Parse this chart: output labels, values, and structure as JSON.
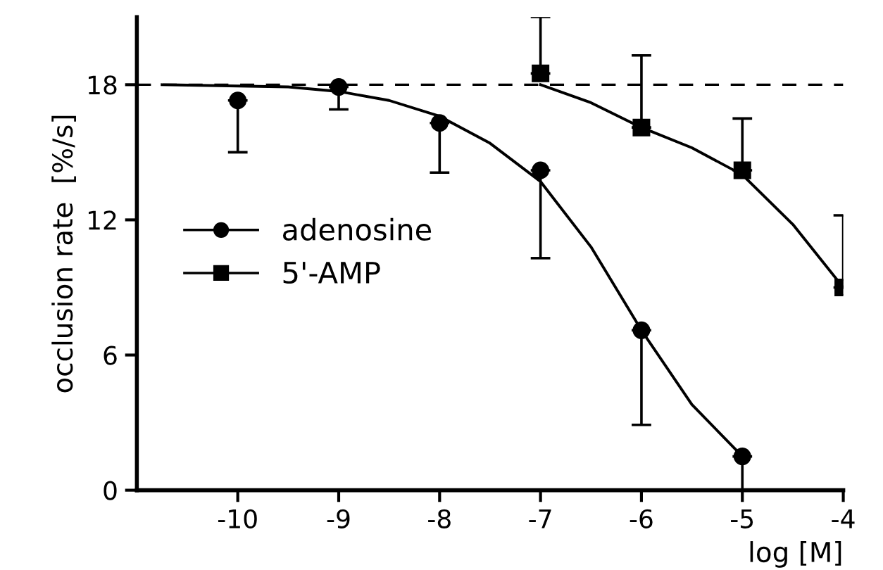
{
  "chart_data": {
    "type": "scatter",
    "xlabel": "log [M]",
    "ylabel": "occlusion rate  [%/s]",
    "xlim": [
      -11,
      -4
    ],
    "xticks": [
      -10,
      -9,
      -8,
      -7,
      -6,
      -5,
      -4
    ],
    "ylim": [
      0,
      21
    ],
    "yticks": [
      0,
      6,
      12,
      18
    ],
    "grid": false,
    "legend": "center left",
    "ref_lines": [
      {
        "axis": "y",
        "value": 18,
        "line_style": "dashed",
        "color": "#000000"
      }
    ],
    "series": [
      {
        "name": "adenosine",
        "marker": "circle",
        "color": "#000000",
        "x": [
          -10,
          -9,
          -8,
          -7,
          -6,
          -5
        ],
        "values": [
          17.3,
          17.9,
          16.3,
          14.2,
          7.1,
          1.5
        ],
        "errors": [
          [
            15.0,
            17.3
          ],
          [
            16.9,
            17.9
          ],
          [
            14.1,
            16.3
          ],
          [
            10.3,
            14.2
          ],
          [
            2.9,
            7.1
          ],
          [
            0,
            1.5
          ]
        ]
      },
      {
        "name": "5'-AMP",
        "marker": "square",
        "color": "#000000",
        "x": [
          -7,
          -6,
          -5,
          -4
        ],
        "values": [
          18.5,
          16.1,
          14.2,
          9.0
        ],
        "errors": [
          [
            18.5,
            21.0
          ],
          [
            16.1,
            19.3
          ],
          [
            14.2,
            16.5
          ],
          [
            9.0,
            12.2
          ]
        ]
      },
      {
        "type": "line",
        "color": "#000000",
        "line_style": "solid",
        "x": [
          -10.75,
          -9.5,
          -9,
          -8.5,
          -8,
          -7.5,
          -7,
          -6.5,
          -6,
          -5.5,
          -5
        ],
        "values": [
          18.0,
          17.9,
          17.7,
          17.3,
          16.6,
          15.4,
          13.7,
          10.8,
          7.1,
          3.8,
          1.5
        ]
      },
      {
        "type": "line",
        "color": "#000000",
        "line_style": "solid",
        "x": [
          -7,
          -6.5,
          -6,
          -5.5,
          -5,
          -4.5,
          -4
        ],
        "values": [
          18.0,
          17.2,
          16.1,
          15.2,
          14.0,
          11.8,
          9.0
        ]
      }
    ]
  }
}
